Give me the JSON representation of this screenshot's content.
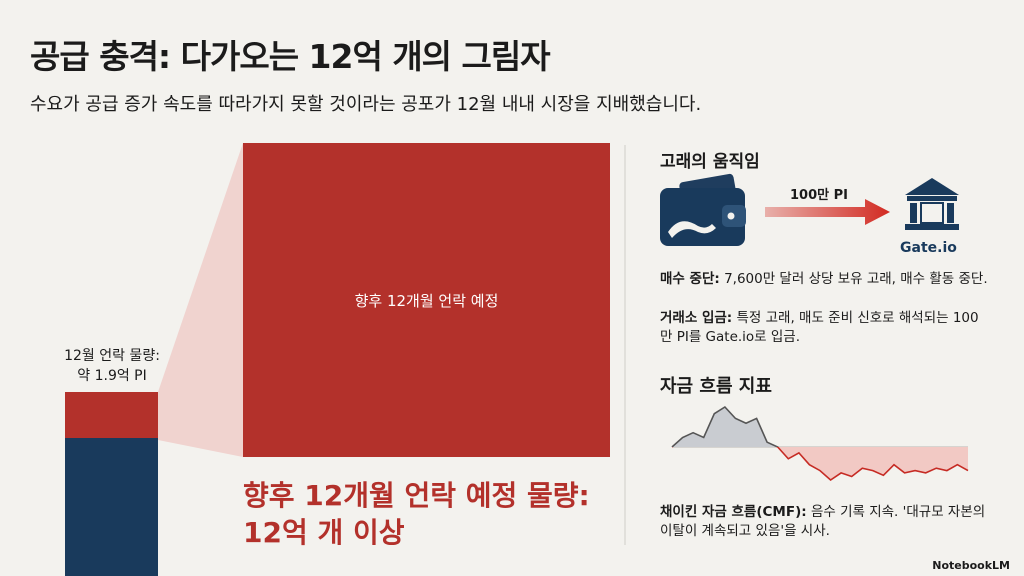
{
  "header": {
    "title": "공급 충격: 다가오는 12억 개의 그림자",
    "subtitle": "수요가 공급 증가 속도를 따라가지 못할 것이라는 공포가 12월 내내 시장을 지배했습니다."
  },
  "unlock": {
    "december_label": "12월 언락 물량:",
    "december_value": "약 1.9억 PI",
    "box_label": "향후 12개월 언락 예정",
    "headline_line1": "향후 12개월 언락 예정 물량:",
    "headline_line2": "12억 개 이상"
  },
  "whale": {
    "title": "고래의 움직임",
    "arrow_label": "100만 PI",
    "exchange": "Gate.io",
    "items": [
      {
        "label": "매수 중단:",
        "text": "7,600만 달러 상당 보유 고래, 매수 활동 중단."
      },
      {
        "label": "거래소 입금:",
        "text": "특정 고래, 매도 준비 신호로 해석되는 100만 PI를 Gate.io로 입금."
      }
    ]
  },
  "flow": {
    "title": "자금 흐름 지표",
    "label": "채이킨 자금 흐름(CMF):",
    "text": "음수 기록 지속. '대규모 자본의 이탈이 계속되고 있음'을 시사.",
    "chart": {
      "type": "line",
      "values": [
        0.0,
        0.1,
        0.15,
        0.1,
        0.35,
        0.42,
        0.3,
        0.25,
        0.3,
        0.05,
        0.0,
        -0.1,
        -0.05,
        -0.15,
        -0.2,
        -0.28,
        -0.22,
        -0.25,
        -0.18,
        -0.2,
        -0.24,
        -0.15,
        -0.22,
        -0.2,
        -0.22,
        -0.18,
        -0.2,
        -0.15,
        -0.2
      ]
    }
  },
  "footer": {
    "brand": "NotebookLM"
  }
}
